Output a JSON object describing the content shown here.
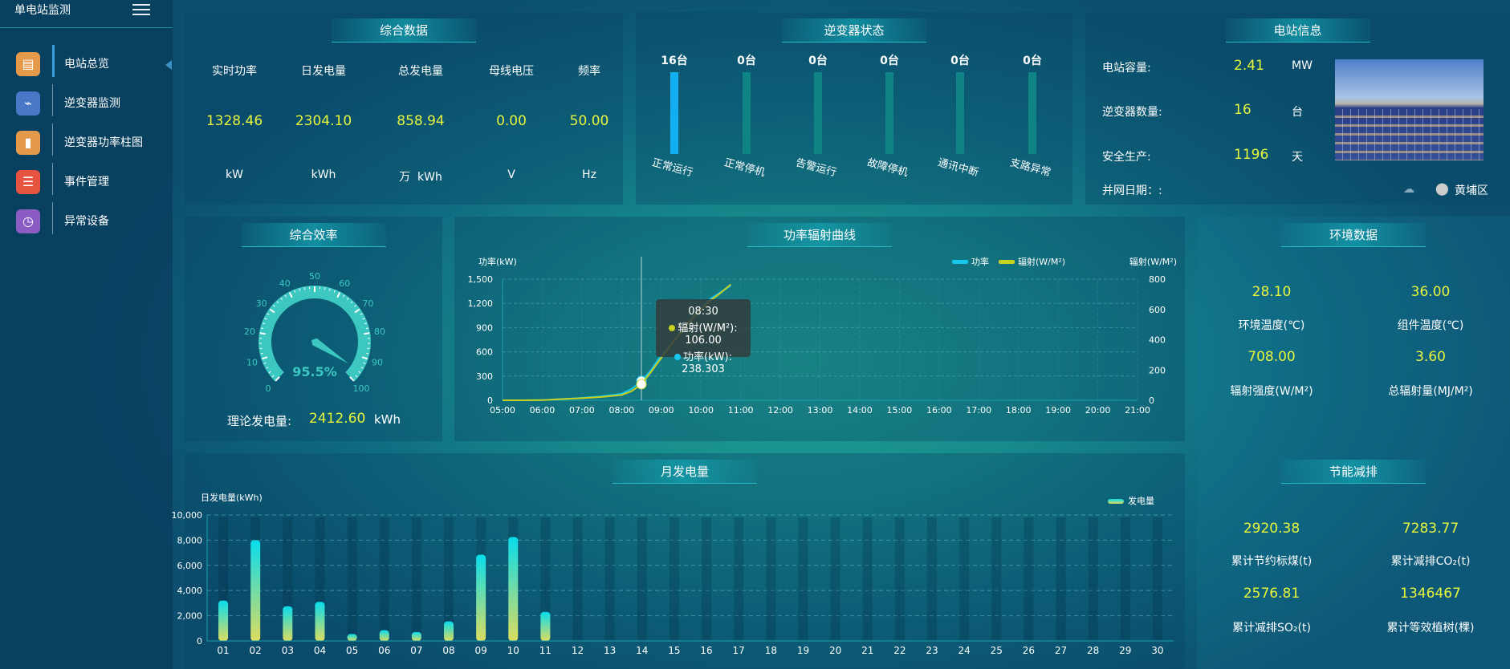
{
  "sidebar": {
    "title": "单电站监测",
    "items": [
      {
        "label": "电站总览",
        "icon": "document-icon",
        "color": "#e49a4a"
      },
      {
        "label": "逆变器监测",
        "icon": "monitor-pulse-icon",
        "color": "#4a78c8"
      },
      {
        "label": "逆变器功率柱图",
        "icon": "bar-chart-icon",
        "color": "#e49a4a"
      },
      {
        "label": "事件管理",
        "icon": "notepad-icon",
        "color": "#e6533f"
      },
      {
        "label": "异常设备",
        "icon": "list-clock-icon",
        "color": "#8a5cc4"
      }
    ]
  },
  "summary": {
    "title": "综合数据",
    "items": [
      {
        "label": "实时功率",
        "value": "1328.46",
        "unit": "kW"
      },
      {
        "label": "日发电量",
        "value": "2304.10",
        "unit": "kWh"
      },
      {
        "label": "总发电量",
        "value": "858.94",
        "unit": "万  kWh"
      },
      {
        "label": "母线电压",
        "value": "0.00",
        "unit": "V"
      },
      {
        "label": "频率",
        "value": "50.00",
        "unit": "Hz"
      }
    ]
  },
  "inverter_status": {
    "title": "逆变器状态",
    "items": [
      {
        "value": "16台",
        "label": "正常运行",
        "count": 16
      },
      {
        "value": "0台",
        "label": "正常停机",
        "count": 0
      },
      {
        "value": "0台",
        "label": "告警运行",
        "count": 0
      },
      {
        "value": "0台",
        "label": "故障停机",
        "count": 0
      },
      {
        "value": "0台",
        "label": "通讯中断",
        "count": 0
      },
      {
        "value": "0台",
        "label": "支路异常",
        "count": 0
      }
    ],
    "active_color": "#12b0f0",
    "inactive_color": "#0e8484"
  },
  "station": {
    "title": "电站信息",
    "rows": [
      {
        "label": "电站容量:",
        "value": "2.41",
        "unit": "MW"
      },
      {
        "label": "逆变器数量:",
        "value": "16",
        "unit": "台"
      },
      {
        "label": "安全生产:",
        "value": "1196",
        "unit": "天"
      }
    ],
    "grid_date_label": "并网日期：:",
    "location": "黄埔区"
  },
  "efficiency": {
    "title": "综合效率",
    "value": 95.5,
    "value_text": "95.5%",
    "ticks": [
      "0",
      "10",
      "20",
      "30",
      "40",
      "50",
      "60",
      "70",
      "80",
      "90",
      "100"
    ],
    "theory_label": "理论发电量:",
    "theory_value": "2412.60",
    "theory_unit": "kWh"
  },
  "env": {
    "title": "环境数据",
    "items": [
      {
        "value": "28.10",
        "label": "环境温度(℃)"
      },
      {
        "value": "36.00",
        "label": "组件温度(℃)"
      },
      {
        "value": "708.00",
        "label": "辐射强度(W/M²)"
      },
      {
        "value": "3.60",
        "label": "总辐射量(MJ/M²)"
      }
    ]
  },
  "saving": {
    "title": "节能减排",
    "items": [
      {
        "value": "2920.38",
        "label": "累计节约标煤(t)"
      },
      {
        "value": "7283.77",
        "label": "累计减排CO₂(t)"
      },
      {
        "value": "2576.81",
        "label": "累计减排SO₂(t)"
      },
      {
        "value": "1346467",
        "label": "累计等效植树(棵)"
      }
    ]
  },
  "chart_data": [
    {
      "type": "line",
      "title": "功率辐射曲线",
      "ylabel": "功率(kW)",
      "y2label": "辐射(W/M²)",
      "ylim": [
        0,
        1500
      ],
      "y2lim": [
        0,
        800
      ],
      "yticks": [
        "0",
        "300",
        "600",
        "900",
        "1,200",
        "1,500"
      ],
      "y2ticks": [
        "0",
        "200",
        "400",
        "600",
        "800"
      ],
      "xticks": [
        "05:00",
        "06:00",
        "07:00",
        "08:00",
        "09:00",
        "10:00",
        "11:00",
        "12:00",
        "13:00",
        "14:00",
        "15:00",
        "16:00",
        "17:00",
        "18:00",
        "19:00",
        "20:00",
        "21:00"
      ],
      "x": [
        "05:00",
        "05:30",
        "06:00",
        "06:30",
        "07:00",
        "07:30",
        "08:00",
        "08:15",
        "08:30",
        "08:45",
        "09:00",
        "09:15",
        "09:30",
        "09:45",
        "10:00",
        "10:15",
        "10:30",
        "10:45"
      ],
      "series": [
        {
          "name": "功率",
          "axis": "left",
          "color": "#14c8ee",
          "values": [
            0,
            0,
            2,
            15,
            30,
            50,
            80,
            140,
            238.303,
            380,
            560,
            700,
            850,
            1000,
            1150,
            1260,
            1340,
            1420
          ]
        },
        {
          "name": "辐射(W/M²)",
          "axis": "right",
          "color": "#c8d020",
          "values": [
            0,
            0,
            1,
            8,
            14,
            22,
            35,
            60,
            106,
            190,
            280,
            370,
            450,
            530,
            600,
            660,
            710,
            765
          ]
        }
      ],
      "tooltip": {
        "time": "08:30",
        "lines": [
          "辐射(W/M²): 106.00",
          "功率(kW): 238.303"
        ]
      },
      "grid": true,
      "legend": "top-right"
    },
    {
      "type": "bar",
      "title": "月发电量",
      "ylabel": "日发电量(kWh)",
      "ylim": [
        0,
        10000
      ],
      "yticks": [
        "0",
        "2,000",
        "4,000",
        "6,000",
        "8,000",
        "10,000"
      ],
      "categories": [
        "01",
        "02",
        "03",
        "04",
        "05",
        "06",
        "07",
        "08",
        "09",
        "10",
        "11",
        "12",
        "13",
        "14",
        "15",
        "16",
        "17",
        "18",
        "19",
        "20",
        "21",
        "22",
        "23",
        "24",
        "25",
        "26",
        "27",
        "28",
        "29",
        "30"
      ],
      "series": [
        {
          "name": "发电量",
          "values": [
            3200,
            8000,
            2750,
            3100,
            550,
            850,
            700,
            1550,
            6850,
            8250,
            2300,
            null,
            null,
            null,
            null,
            null,
            null,
            null,
            null,
            null,
            null,
            null,
            null,
            null,
            null,
            null,
            null,
            null,
            null,
            null
          ]
        }
      ],
      "legend": "top-right",
      "grid": true
    }
  ]
}
